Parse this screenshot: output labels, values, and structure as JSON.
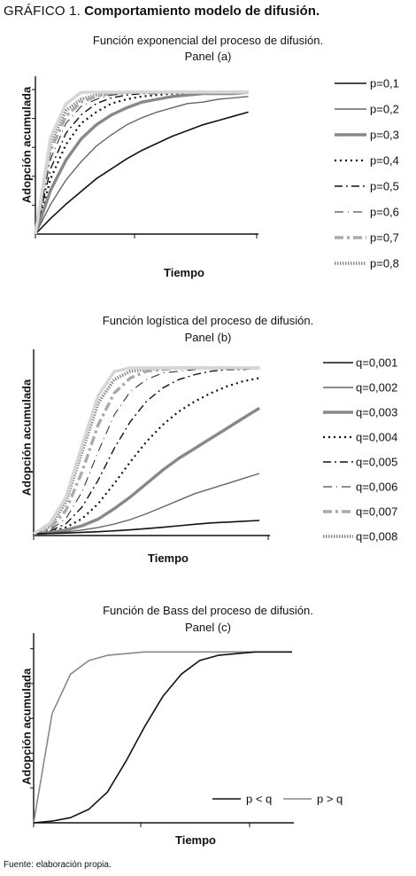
{
  "figure": {
    "label": "GRÁFICO 1.",
    "title": "Comportamiento modelo de difusión.",
    "source": "Fuente: elaboración propia."
  },
  "chart_data": [
    {
      "type": "line",
      "title": "Función exponencial del proceso de difusión.",
      "subtitle": "Panel (a)",
      "xlabel": "Tiempo",
      "ylabel": "Adopción acumulada",
      "legend_position": "right",
      "x": [
        0,
        5,
        10,
        15,
        20,
        25,
        30,
        35,
        40,
        45,
        50,
        55,
        60,
        65,
        70
      ],
      "series": [
        {
          "name": "p=0,1",
          "values": [
            0.0,
            0.11,
            0.21,
            0.3,
            0.39,
            0.46,
            0.53,
            0.59,
            0.64,
            0.69,
            0.73,
            0.77,
            0.8,
            0.83,
            0.86
          ]
        },
        {
          "name": "p=0,2",
          "values": [
            0.0,
            0.21,
            0.38,
            0.51,
            0.62,
            0.7,
            0.77,
            0.82,
            0.86,
            0.89,
            0.92,
            0.93,
            0.95,
            0.96,
            0.97
          ]
        },
        {
          "name": "p=0,3",
          "values": [
            0.0,
            0.31,
            0.52,
            0.67,
            0.77,
            0.84,
            0.89,
            0.93,
            0.95,
            0.97,
            0.98,
            0.99,
            0.99,
            0.99,
            1.0
          ]
        },
        {
          "name": "p=0,4",
          "values": [
            0.0,
            0.39,
            0.63,
            0.78,
            0.86,
            0.92,
            0.95,
            0.97,
            0.98,
            0.99,
            0.99,
            1.0,
            1.0,
            1.0,
            1.0
          ]
        },
        {
          "name": "p=0,5",
          "values": [
            0.0,
            0.46,
            0.71,
            0.84,
            0.92,
            0.96,
            0.98,
            0.99,
            0.99,
            1.0,
            1.0,
            1.0,
            1.0,
            1.0,
            1.0
          ]
        },
        {
          "name": "p=0,6",
          "values": [
            0.0,
            0.53,
            0.78,
            0.9,
            0.95,
            0.98,
            0.99,
            1.0,
            1.0,
            1.0,
            1.0,
            1.0,
            1.0,
            1.0,
            1.0
          ]
        },
        {
          "name": "p=0,7",
          "values": [
            0.0,
            0.59,
            0.83,
            0.93,
            0.97,
            0.99,
            1.0,
            1.0,
            1.0,
            1.0,
            1.0,
            1.0,
            1.0,
            1.0,
            1.0
          ]
        },
        {
          "name": "p=0,8",
          "values": [
            0.0,
            0.64,
            0.87,
            0.95,
            0.98,
            0.99,
            1.0,
            1.0,
            1.0,
            1.0,
            1.0,
            1.0,
            1.0,
            1.0,
            1.0
          ]
        }
      ],
      "ylim": [
        0,
        1.1
      ],
      "xlim": [
        0,
        80
      ],
      "grid": false
    },
    {
      "type": "line",
      "title": "Función logística del proceso de difusión.",
      "subtitle": "Panel (b)",
      "xlabel": "Tiempo",
      "ylabel": "Adopción acumulada",
      "legend_position": "right",
      "x": [
        0,
        5,
        10,
        15,
        20,
        25,
        30,
        35,
        40,
        45,
        50,
        55,
        60,
        65,
        70
      ],
      "series": [
        {
          "name": "q=0,001",
          "values": [
            0.01,
            0.012,
            0.015,
            0.019,
            0.023,
            0.028,
            0.034,
            0.041,
            0.049,
            0.058,
            0.067,
            0.075,
            0.08,
            0.085,
            0.09
          ]
        },
        {
          "name": "q=0,002",
          "values": [
            0.01,
            0.015,
            0.022,
            0.033,
            0.048,
            0.068,
            0.095,
            0.13,
            0.17,
            0.21,
            0.25,
            0.28,
            0.31,
            0.34,
            0.37
          ]
        },
        {
          "name": "q=0,003",
          "values": [
            0.01,
            0.018,
            0.033,
            0.058,
            0.098,
            0.16,
            0.23,
            0.31,
            0.39,
            0.46,
            0.52,
            0.58,
            0.64,
            0.7,
            0.76
          ]
        },
        {
          "name": "q=0,004",
          "values": [
            0.01,
            0.022,
            0.048,
            0.1,
            0.19,
            0.31,
            0.44,
            0.56,
            0.66,
            0.74,
            0.8,
            0.85,
            0.89,
            0.92,
            0.94
          ]
        },
        {
          "name": "q=0,005",
          "values": [
            0.01,
            0.027,
            0.07,
            0.17,
            0.33,
            0.52,
            0.68,
            0.8,
            0.88,
            0.93,
            0.96,
            0.98,
            0.99,
            0.99,
            1.0
          ]
        },
        {
          "name": "q=0,006",
          "values": [
            0.01,
            0.033,
            0.1,
            0.26,
            0.5,
            0.72,
            0.86,
            0.93,
            0.97,
            0.98,
            0.99,
            1.0,
            1.0,
            1.0,
            1.0
          ]
        },
        {
          "name": "q=0,007",
          "values": [
            0.01,
            0.04,
            0.15,
            0.38,
            0.66,
            0.85,
            0.94,
            0.98,
            0.99,
            1.0,
            1.0,
            1.0,
            1.0,
            1.0,
            1.0
          ]
        },
        {
          "name": "q=0,008",
          "values": [
            0.01,
            0.05,
            0.2,
            0.5,
            0.79,
            0.93,
            0.98,
            0.99,
            1.0,
            1.0,
            1.0,
            1.0,
            1.0,
            1.0,
            1.0
          ]
        }
      ],
      "ylim": [
        0,
        1.1
      ],
      "xlim": [
        0,
        80
      ],
      "grid": false
    },
    {
      "type": "line",
      "title": "Función de Bass del proceso de difusión.",
      "subtitle": "Panel (c)",
      "xlabel": "Tiempo",
      "ylabel": "Adopción acumulada",
      "legend_position": "bottom-right",
      "x": [
        0,
        5,
        10,
        15,
        20,
        25,
        30,
        35,
        40,
        45,
        50,
        55,
        60,
        65,
        70
      ],
      "series": [
        {
          "name": "p < q",
          "values": [
            0.0,
            0.01,
            0.03,
            0.08,
            0.18,
            0.36,
            0.56,
            0.74,
            0.87,
            0.95,
            0.98,
            0.99,
            1.0,
            1.0,
            1.0
          ]
        },
        {
          "name": "p > q",
          "values": [
            0.0,
            0.64,
            0.87,
            0.95,
            0.98,
            0.99,
            1.0,
            1.0,
            1.0,
            1.0,
            1.0,
            1.0,
            1.0,
            1.0,
            1.0
          ]
        }
      ],
      "ylim": [
        0,
        1.1
      ],
      "xlim": [
        0,
        70
      ],
      "grid": false
    }
  ]
}
